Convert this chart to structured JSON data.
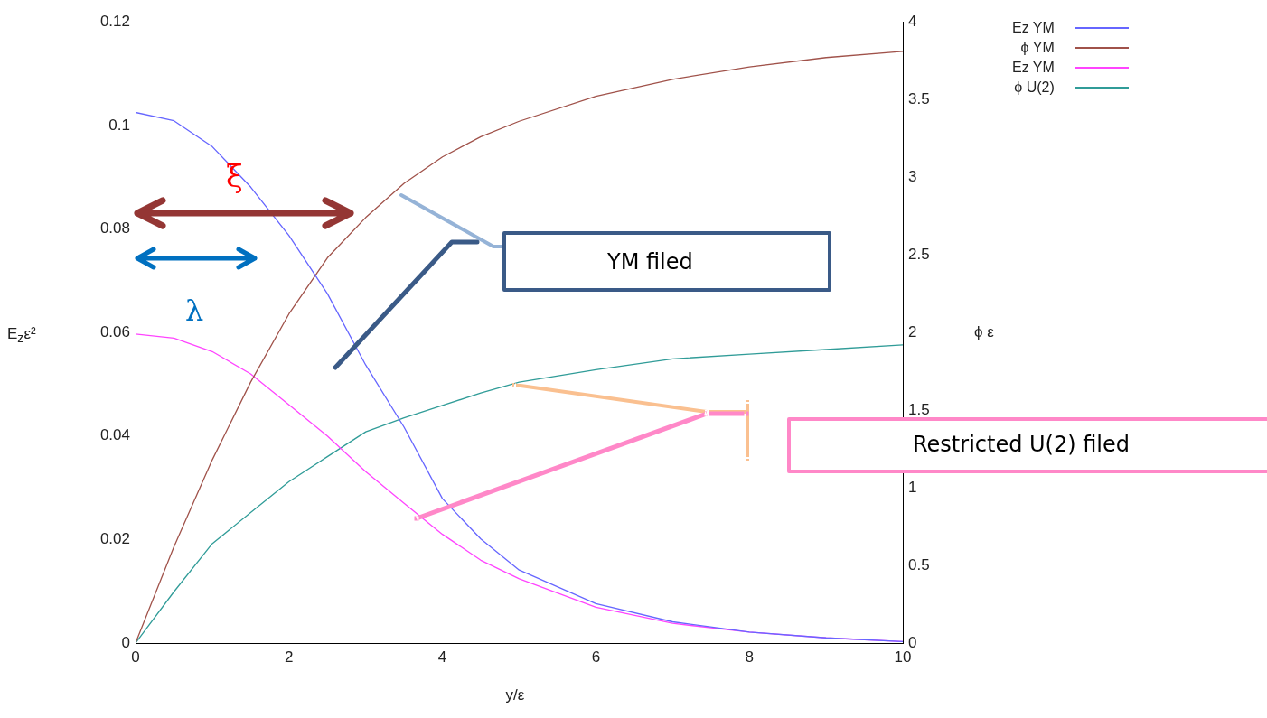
{
  "chart_data": {
    "type": "line",
    "xlabel": "y/ε",
    "ylabel": "E$_{z}$ε²",
    "y2label": "ϕ ε",
    "x": [
      0,
      0.5,
      1,
      1.5,
      2,
      2.5,
      3,
      3.5,
      4,
      4.5,
      5,
      6,
      7,
      8,
      9,
      10
    ],
    "series": [
      {
        "name": "Ez YM",
        "color": "#6666ff",
        "values": [
          0.1025,
          0.1009,
          0.0959,
          0.0881,
          0.0787,
          0.0675,
          0.0537,
          0.0417,
          0.0279,
          0.0201,
          0.0141,
          0.0076,
          0.0041,
          0.0021,
          0.001,
          0.0003
        ]
      },
      {
        "name": "ϕ YM",
        "color": "#a0524a",
        "axis": "y2",
        "values": [
          0,
          0.62,
          1.18,
          1.68,
          2.12,
          2.48,
          2.74,
          2.96,
          3.13,
          3.26,
          3.36,
          3.52,
          3.63,
          3.71,
          3.77,
          3.81
        ]
      },
      {
        "name": "Ez YM",
        "color": "#ff44ff",
        "values": [
          0.0597,
          0.0589,
          0.0563,
          0.052,
          0.046,
          0.04,
          0.0331,
          0.027,
          0.021,
          0.016,
          0.0124,
          0.0069,
          0.0038,
          0.0021,
          0.001,
          0.0003
        ]
      },
      {
        "name": "ϕ U(2)",
        "color": "#309c98",
        "axis": "y2",
        "values": [
          0,
          0.33,
          0.64,
          0.84,
          1.04,
          1.2,
          1.36,
          1.45,
          1.53,
          1.61,
          1.68,
          1.76,
          1.83,
          1.86,
          1.89,
          1.92
        ]
      }
    ],
    "xlim": [
      0,
      10
    ],
    "xticks": [
      0,
      2,
      4,
      6,
      8,
      10
    ],
    "ylim": [
      0,
      0.12
    ],
    "yticks": [
      0,
      0.02,
      0.04,
      0.06,
      0.08,
      0.1,
      0.12
    ],
    "y2lim": [
      0,
      4
    ],
    "y2ticks": [
      0,
      0.5,
      1,
      1.5,
      2,
      2.5,
      3,
      3.5,
      4
    ],
    "grid": false,
    "legend": "top right",
    "marker": "none",
    "line_style": "solid",
    "annotations": [
      "ξ",
      "λ",
      "YM filed",
      "Restricted U(2) filed"
    ]
  }
}
